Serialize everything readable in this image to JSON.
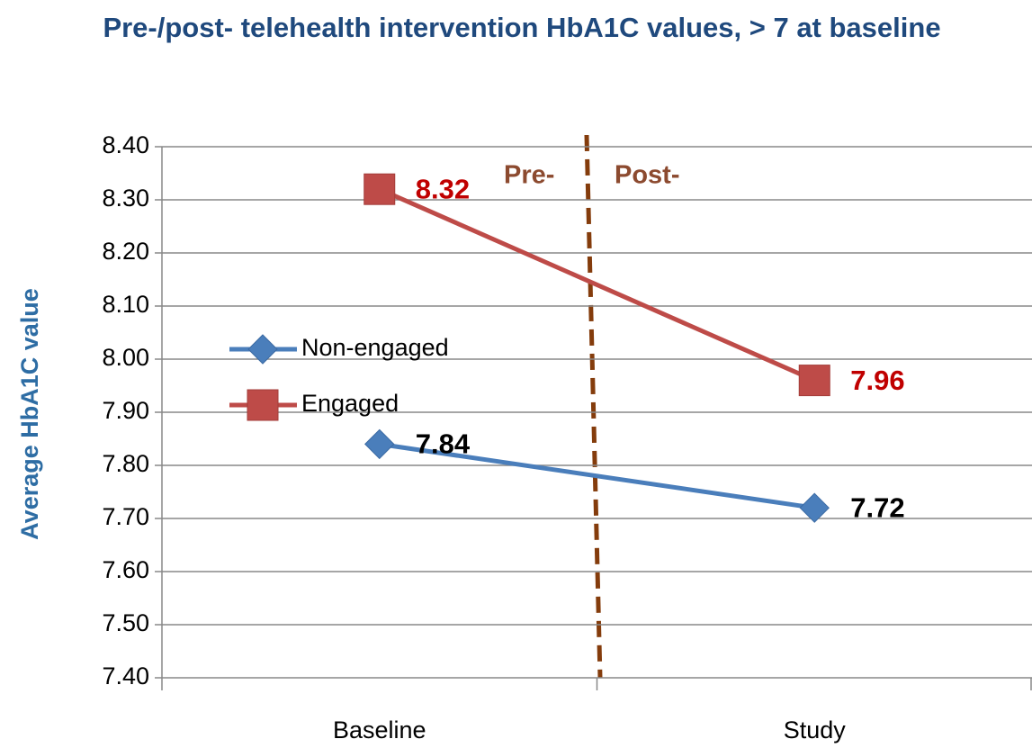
{
  "chart_data": {
    "type": "line",
    "title": "Pre-/post- telehealth intervention HbA1C values, > 7 at baseline",
    "y_label": "Average HbA1C value",
    "categories": [
      "Baseline",
      "Study"
    ],
    "series": [
      {
        "name": "Non-engaged",
        "color": "#4a7ebb",
        "marker": "diamond",
        "label_color": "#000000",
        "values": [
          7.84,
          7.72
        ]
      },
      {
        "name": "Engaged",
        "color": "#be4b48",
        "marker": "square",
        "label_color": "#c00000",
        "values": [
          8.32,
          7.96
        ]
      }
    ],
    "annotations": [
      "Pre-",
      "Post-"
    ],
    "ylim": [
      7.4,
      8.4
    ],
    "yticks": [
      {
        "value": 7.4,
        "label": "7.40"
      },
      {
        "value": 7.5,
        "label": "7.50"
      },
      {
        "value": 7.6,
        "label": "7.60"
      },
      {
        "value": 7.7,
        "label": "7.70"
      },
      {
        "value": 7.8,
        "label": "7.80"
      },
      {
        "value": 7.9,
        "label": "7.90"
      },
      {
        "value": 8.0,
        "label": "8.00"
      },
      {
        "value": 8.1,
        "label": "8.10"
      },
      {
        "value": 8.2,
        "label": "8.20"
      },
      {
        "value": 8.3,
        "label": "8.30"
      },
      {
        "value": 8.4,
        "label": "8.40"
      }
    ],
    "grid": true
  }
}
